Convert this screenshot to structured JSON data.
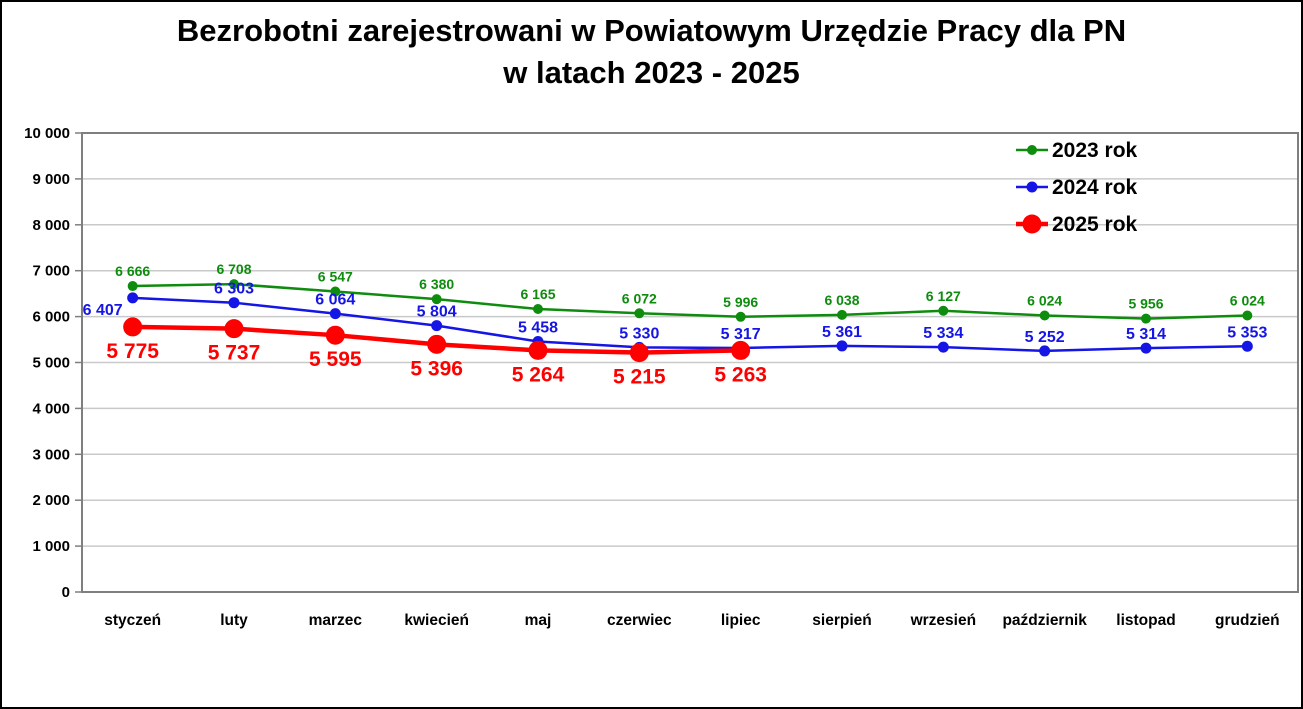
{
  "title": {
    "line1": "Bezrobotni zarejestrowani w Powiatowym Urzędzie Pracy dla PN",
    "line2": "w latach 2023 - 2025"
  },
  "colors": {
    "series_2023": "#0e8c0e",
    "series_2024": "#1515e6",
    "series_2025": "#ff0000",
    "gridline": "#c9c9c9",
    "axis": "#7f7f7f",
    "text": "#000000",
    "background": "#ffffff",
    "frame_border": "#000000"
  },
  "chart_data": {
    "type": "line",
    "title": "Bezrobotni zarejestrowani w Powiatowym Urzędzie Pracy dla PN w latach 2023 - 2025",
    "categories": [
      "styczeń",
      "luty",
      "marzec",
      "kwiecień",
      "maj",
      "czerwiec",
      "lipiec",
      "sierpień",
      "wrzesień",
      "październik",
      "listopad",
      "grudzień"
    ],
    "series": [
      {
        "name": "2023 rok",
        "color": "#0e8c0e",
        "values": [
          6666,
          6708,
          6547,
          6380,
          6165,
          6072,
          5996,
          6038,
          6127,
          6024,
          5956,
          6024
        ],
        "marker_radius": 5,
        "line_width": 2.5,
        "label_font_size": 14,
        "label_offset": -10
      },
      {
        "name": "2024 rok",
        "color": "#1515e6",
        "values": [
          6407,
          6303,
          6064,
          5804,
          5458,
          5330,
          5317,
          5361,
          5334,
          5252,
          5314,
          5353
        ],
        "marker_radius": 5.5,
        "line_width": 2.5,
        "label_font_size": 16,
        "label_offset": -9,
        "label_overrides": {
          "0": {
            "dx": -30,
            "offset": 17
          }
        }
      },
      {
        "name": "2025 rok",
        "color": "#ff0000",
        "values": [
          5775,
          5737,
          5595,
          5396,
          5264,
          5215,
          5263
        ],
        "marker_radius": 9.5,
        "line_width": 4.5,
        "label_font_size": 21,
        "label_offset": 31
      }
    ],
    "ylim": [
      0,
      10000
    ],
    "ytick_step": 1000,
    "ytick_labels": [
      "0",
      "1 000",
      "2 000",
      "3 000",
      "4 000",
      "5 000",
      "6 000",
      "7 000",
      "8 000",
      "9 000",
      "10 000"
    ],
    "grid": true,
    "legend_position": "top-right",
    "xlabel": "",
    "ylabel": ""
  }
}
